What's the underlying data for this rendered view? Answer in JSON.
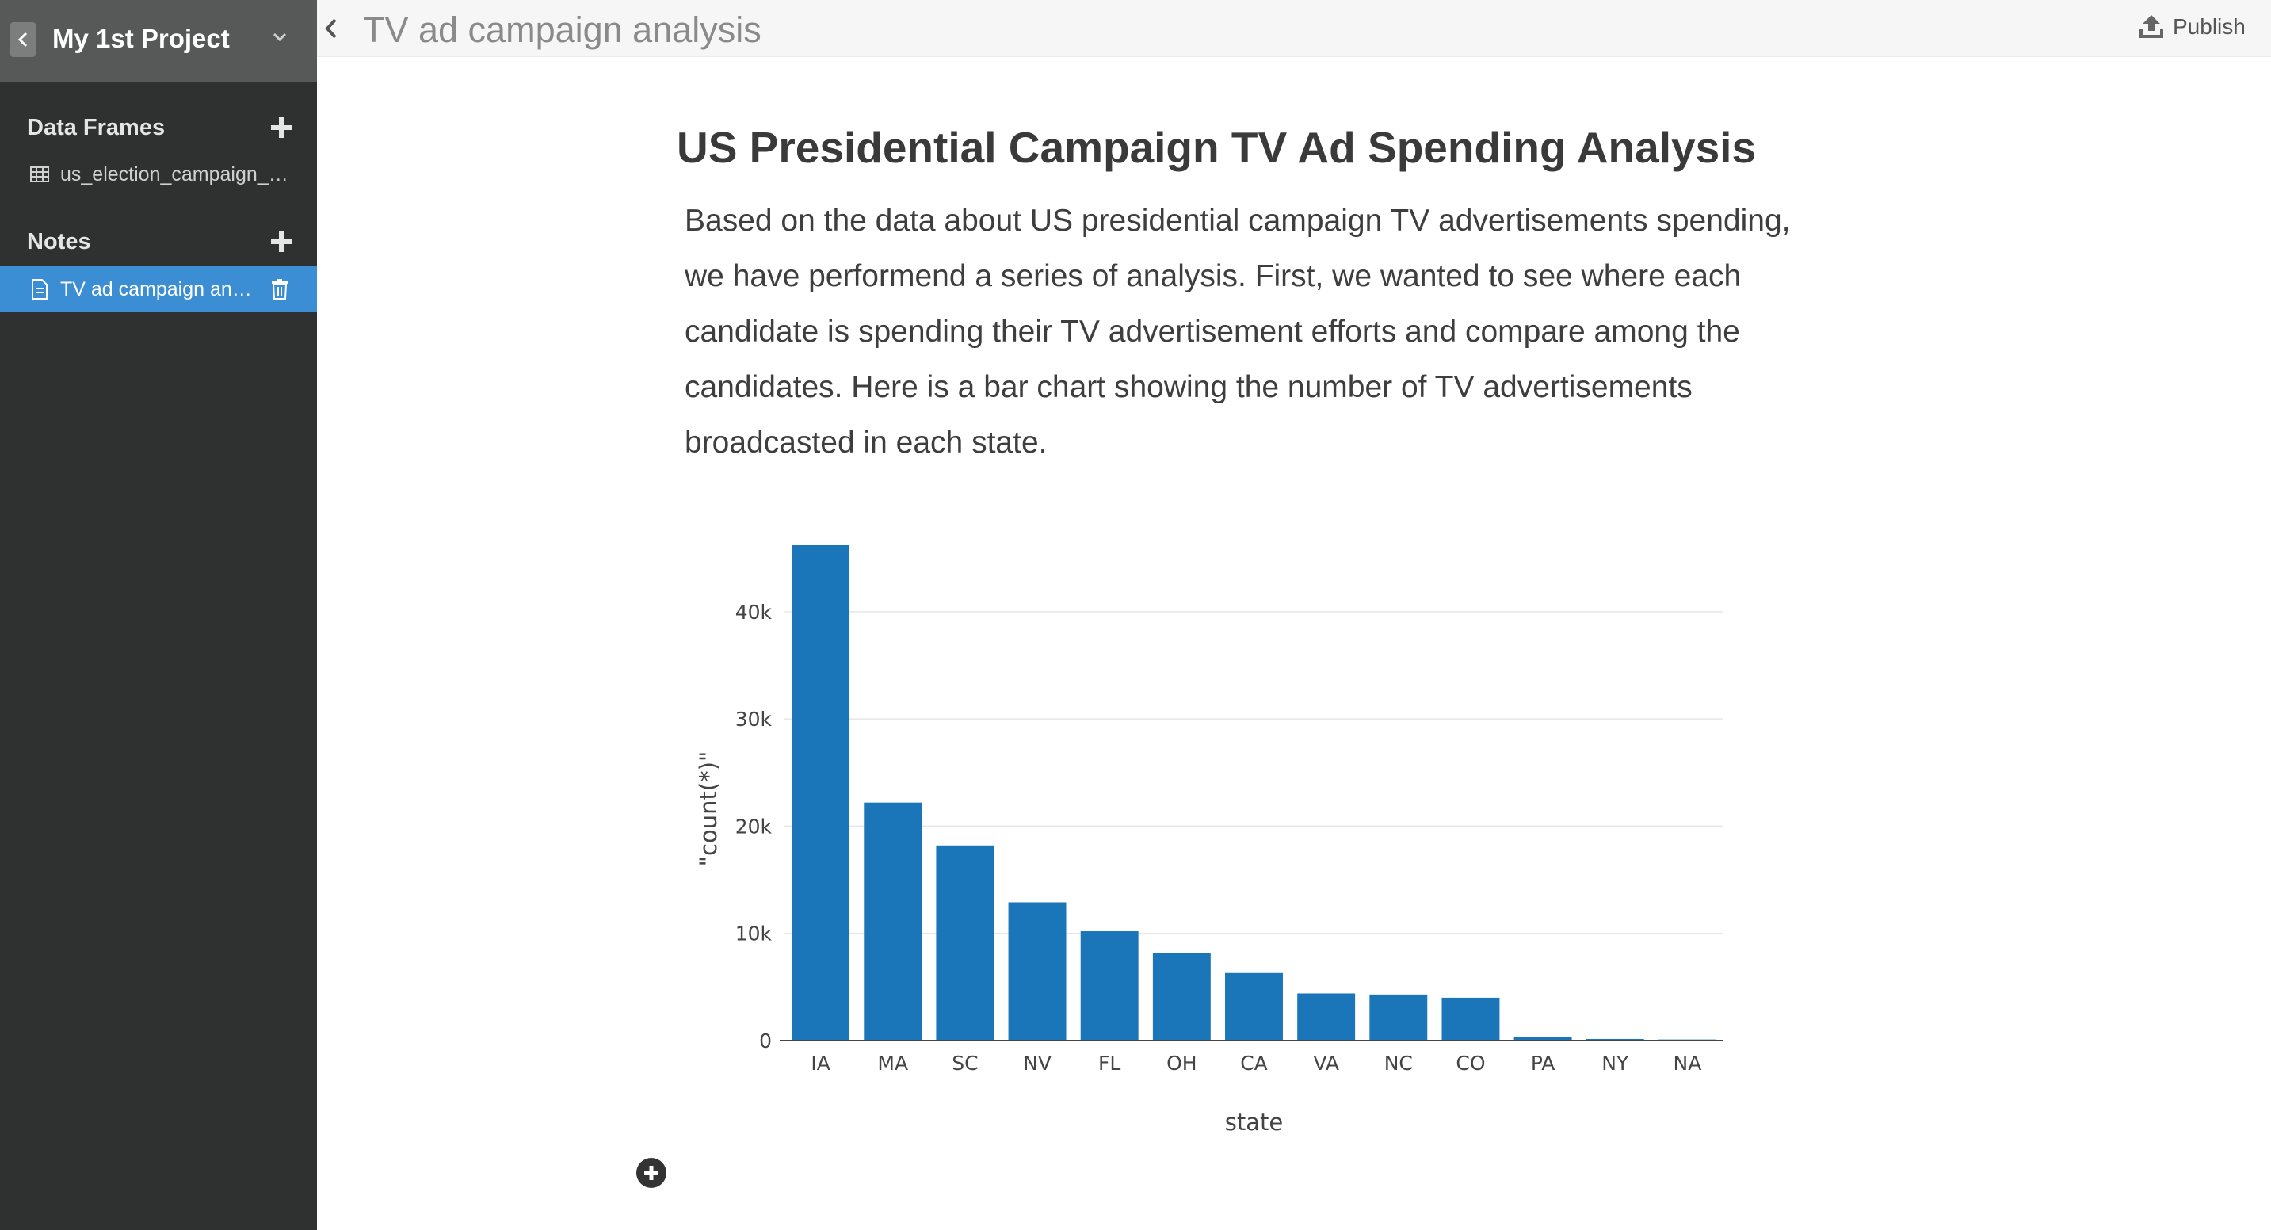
{
  "sidebar": {
    "project_title": "My 1st Project",
    "sections": {
      "data_frames": {
        "label": "Data Frames",
        "items": [
          {
            "label": "us_election_campaign_tv_ads",
            "icon": "table-icon"
          }
        ]
      },
      "notes": {
        "label": "Notes",
        "items": [
          {
            "label": "TV ad campaign analysis",
            "icon": "document-icon",
            "active": true
          }
        ]
      }
    },
    "colors": {
      "background": "#2f3131",
      "header": "#575959",
      "active": "#3b8ed4"
    }
  },
  "topbar": {
    "title": "TV ad campaign analysis",
    "publish_label": "Publish"
  },
  "note": {
    "heading": "US Presidential Campaign TV Ad Spending Analysis",
    "paragraph_lines": [
      "Based on the data about US presidential campaign TV advertisements spending,",
      "we have performend a series of analysis. First, we wanted to see where each",
      "candidate is spending their TV advertisement efforts and compare among the",
      "candidates. Here is a bar chart showing the number of TV advertisements",
      "broadcasted in each state."
    ]
  },
  "chart_data": {
    "type": "bar",
    "categories": [
      "IA",
      "MA",
      "SC",
      "NV",
      "FL",
      "OH",
      "CA",
      "VA",
      "NC",
      "CO",
      "PA",
      "NY",
      "NA"
    ],
    "values": [
      46200,
      22200,
      18200,
      12900,
      10200,
      8200,
      6300,
      4400,
      4300,
      4000,
      300,
      150,
      100
    ],
    "title": "",
    "xlabel": "state",
    "ylabel": "\"count(*)\"",
    "ylim": [
      0,
      46200
    ],
    "yticks": [
      0,
      10000,
      20000,
      30000,
      40000
    ],
    "ytick_labels": [
      "0",
      "10k",
      "20k",
      "30k",
      "40k"
    ],
    "grid": true,
    "bar_color": "#1a76b8"
  }
}
